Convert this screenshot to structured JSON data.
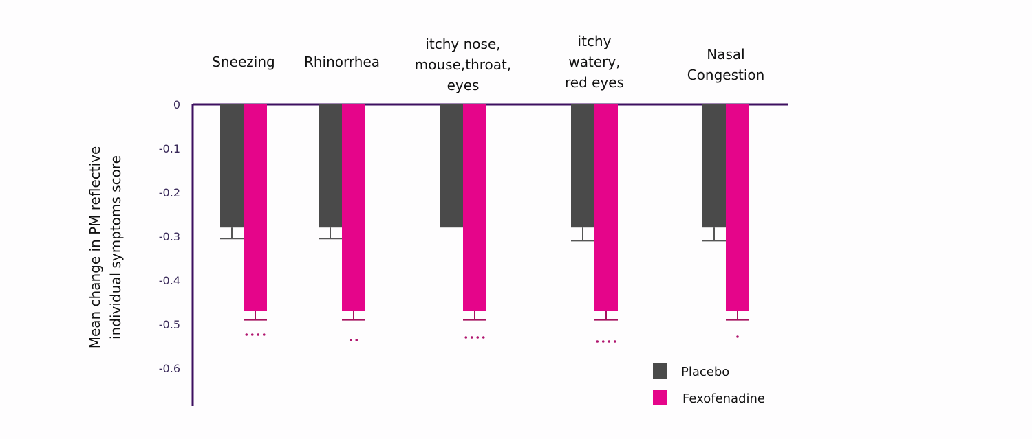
{
  "chart_data": {
    "type": "bar",
    "title": "",
    "xlabel": "",
    "ylabel": [
      "Mean change in  PM reflective",
      "individual symptoms score"
    ],
    "ylim": [
      -0.68,
      0
    ],
    "yticks": [
      0,
      -0.1,
      -0.2,
      -0.3,
      -0.4,
      -0.5,
      -0.6
    ],
    "ytick_labels": [
      "0",
      "-0.1",
      "-0.2",
      "-0.3",
      "-0.4",
      "-0.5",
      "-0.6"
    ],
    "grid": false,
    "legend_position": "bottom-right",
    "categories": [
      [
        "Sneezing"
      ],
      [
        "Rhinorrhea"
      ],
      [
        "itchy nose,",
        "mouse,throat,",
        "eyes"
      ],
      [
        "itchy",
        "watery,",
        "red eyes"
      ],
      [
        "Nasal",
        "Congestion"
      ]
    ],
    "series": [
      {
        "name": "Placebo",
        "color": "#4a4a4a",
        "values": [
          -0.28,
          -0.28,
          -0.28,
          -0.28,
          -0.28
        ],
        "error_to": [
          -0.305,
          -0.305,
          null,
          -0.31,
          -0.31
        ]
      },
      {
        "name": "Fexofenadine",
        "color": "#e5058a",
        "values": [
          -0.47,
          -0.47,
          -0.47,
          -0.47,
          -0.47
        ],
        "error_to": [
          -0.49,
          -0.49,
          -0.49,
          -0.49,
          -0.49
        ]
      }
    ],
    "significance": [
      "....",
      "..",
      "....",
      "....",
      "."
    ],
    "significance_color": "#b0156e",
    "axis_color": "#3d1060"
  }
}
